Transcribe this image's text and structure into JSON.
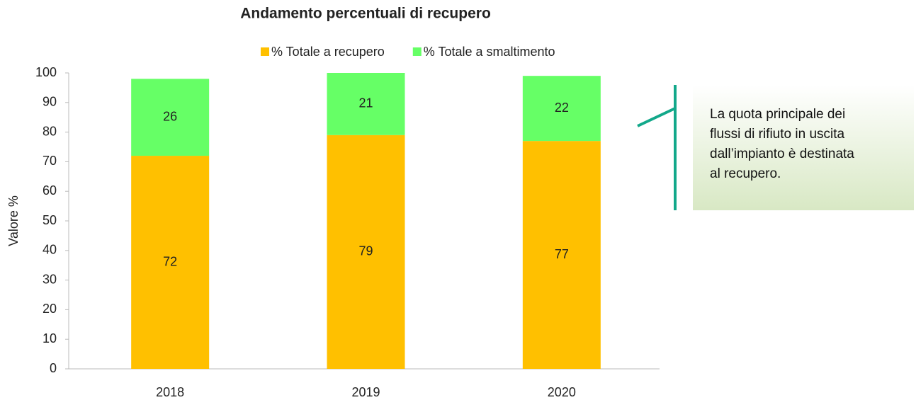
{
  "chart_data": {
    "type": "stacked_bar",
    "title": "Andamento percentuali di recupero",
    "ylabel": "Valore %",
    "categories": [
      "2018",
      "2019",
      "2020"
    ],
    "series": [
      {
        "name": "% Totale a recupero",
        "color": "#ffc000",
        "values": [
          72,
          79,
          77
        ]
      },
      {
        "name": "% Totale a smaltimento",
        "color": "#66ff66",
        "values": [
          26,
          21,
          22
        ]
      }
    ],
    "ylim": [
      0,
      100
    ],
    "yticks": [
      0,
      10,
      20,
      30,
      40,
      50,
      60,
      70,
      80,
      90,
      100
    ],
    "grid": false,
    "legend": "top",
    "annotation": [
      "La quota principale dei",
      "flussi di rifiuto in uscita",
      "dall’impianto è destinata",
      "al recupero."
    ]
  }
}
